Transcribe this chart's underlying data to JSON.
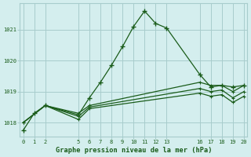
{
  "title": "Graphe pression niveau de la mer (hPa)",
  "bg_color": "#d4eeee",
  "grid_color": "#a8cccc",
  "line_color": "#1a5c1a",
  "xlim": [
    -0.3,
    20.3
  ],
  "ylim": [
    1017.55,
    1021.85
  ],
  "yticks": [
    1018,
    1019,
    1020,
    1021
  ],
  "xticks": [
    0,
    1,
    2,
    5,
    6,
    7,
    8,
    9,
    10,
    11,
    12,
    13,
    16,
    17,
    18,
    19,
    20
  ],
  "series_main": {
    "x": [
      0,
      1,
      2,
      5,
      6,
      7,
      8,
      9,
      10,
      11,
      12,
      13,
      16,
      17,
      18,
      19,
      20
    ],
    "y": [
      1017.75,
      1018.3,
      1018.55,
      1018.25,
      1018.8,
      1019.3,
      1019.85,
      1020.45,
      1021.1,
      1021.6,
      1021.2,
      1021.05,
      1019.55,
      1019.15,
      1019.2,
      1019.15,
      1019.2
    ]
  },
  "series_flat": [
    {
      "x": [
        0,
        2,
        5,
        6,
        16,
        17,
        18,
        19,
        20
      ],
      "y": [
        1018.0,
        1018.55,
        1018.3,
        1018.55,
        1019.3,
        1019.2,
        1019.2,
        1019.0,
        1019.2
      ]
    },
    {
      "x": [
        0,
        2,
        5,
        6,
        16,
        17,
        18,
        19,
        20
      ],
      "y": [
        1018.0,
        1018.55,
        1018.2,
        1018.5,
        1019.1,
        1019.0,
        1019.05,
        1018.8,
        1019.0
      ]
    },
    {
      "x": [
        0,
        2,
        5,
        6,
        16,
        17,
        18,
        19,
        20
      ],
      "y": [
        1018.0,
        1018.55,
        1018.1,
        1018.45,
        1018.95,
        1018.85,
        1018.9,
        1018.65,
        1018.85
      ]
    }
  ]
}
